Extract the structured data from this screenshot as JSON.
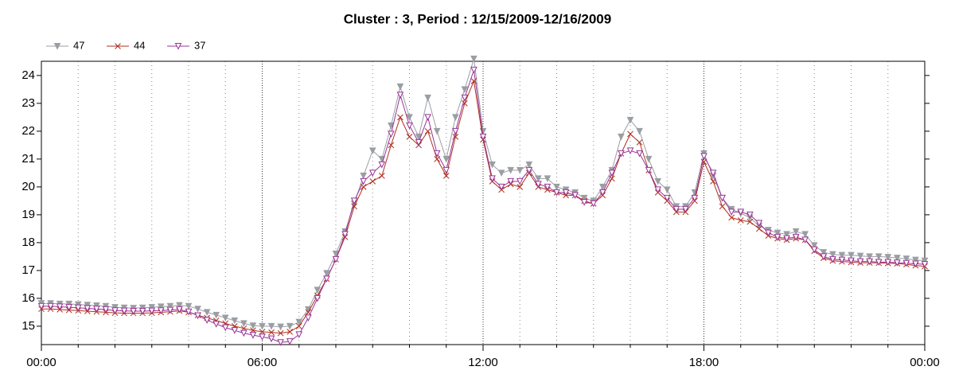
{
  "chart_data": {
    "type": "line",
    "title": "Cluster : 3, Period : 12/15/2009-12/16/2009",
    "x": [
      0,
      0.25,
      0.5,
      0.75,
      1,
      1.25,
      1.5,
      1.75,
      2,
      2.25,
      2.5,
      2.75,
      3,
      3.25,
      3.5,
      3.75,
      4,
      4.25,
      4.5,
      4.75,
      5,
      5.25,
      5.5,
      5.75,
      6,
      6.25,
      6.5,
      6.75,
      7,
      7.25,
      7.5,
      7.75,
      8,
      8.25,
      8.5,
      8.75,
      9,
      9.25,
      9.5,
      9.75,
      10,
      10.25,
      10.5,
      10.75,
      11,
      11.25,
      11.5,
      11.75,
      12,
      12.25,
      12.5,
      12.75,
      13,
      13.25,
      13.5,
      13.75,
      14,
      14.25,
      14.5,
      14.75,
      15,
      15.25,
      15.5,
      15.75,
      16,
      16.25,
      16.5,
      16.75,
      17,
      17.25,
      17.5,
      17.75,
      18,
      18.25,
      18.5,
      18.75,
      19,
      19.25,
      19.5,
      19.75,
      20,
      20.25,
      20.5,
      20.75,
      21,
      21.25,
      21.5,
      21.75,
      22,
      22.25,
      22.5,
      22.75,
      23,
      23.25,
      23.5,
      23.75,
      24
    ],
    "series": [
      {
        "name": "47",
        "color": "#9a9ea2",
        "marker": "triangle-filled",
        "values": [
          15.82,
          15.82,
          15.8,
          15.8,
          15.78,
          15.76,
          15.74,
          15.72,
          15.68,
          15.66,
          15.65,
          15.66,
          15.68,
          15.7,
          15.72,
          15.75,
          15.72,
          15.62,
          15.5,
          15.4,
          15.3,
          15.2,
          15.1,
          15.02,
          15.0,
          15.0,
          14.98,
          15.0,
          15.15,
          15.6,
          16.3,
          16.9,
          17.6,
          18.4,
          19.4,
          20.4,
          21.3,
          21.0,
          22.2,
          23.6,
          22.5,
          21.8,
          23.2,
          22.0,
          21.0,
          22.5,
          23.5,
          24.6,
          22.0,
          20.8,
          20.5,
          20.6,
          20.6,
          20.8,
          20.3,
          20.3,
          20.0,
          19.9,
          19.8,
          19.6,
          19.5,
          20.0,
          20.6,
          21.8,
          22.4,
          22.0,
          21.0,
          20.2,
          19.9,
          19.3,
          19.3,
          19.8,
          21.2,
          20.4,
          19.6,
          19.2,
          19.05,
          18.9,
          18.6,
          18.45,
          18.35,
          18.3,
          18.4,
          18.3,
          17.9,
          17.65,
          17.58,
          17.55,
          17.55,
          17.52,
          17.5,
          17.5,
          17.48,
          17.45,
          17.42,
          17.38,
          17.35
        ]
      },
      {
        "name": "44",
        "color": "#b03020",
        "marker": "cross",
        "values": [
          15.62,
          15.62,
          15.6,
          15.58,
          15.56,
          15.54,
          15.52,
          15.5,
          15.48,
          15.47,
          15.47,
          15.47,
          15.48,
          15.5,
          15.52,
          15.55,
          15.5,
          15.4,
          15.3,
          15.2,
          15.1,
          15.0,
          14.92,
          14.85,
          14.8,
          14.78,
          14.75,
          14.8,
          15.0,
          15.5,
          16.1,
          16.7,
          17.4,
          18.2,
          19.3,
          20.0,
          20.2,
          20.4,
          21.5,
          22.5,
          21.8,
          21.5,
          22.0,
          21.0,
          20.4,
          21.8,
          23.0,
          23.8,
          21.7,
          20.2,
          19.9,
          20.1,
          20.0,
          20.5,
          20.0,
          19.9,
          19.8,
          19.7,
          19.7,
          19.5,
          19.4,
          19.7,
          20.3,
          21.2,
          21.9,
          21.6,
          20.6,
          19.8,
          19.5,
          19.1,
          19.1,
          19.5,
          20.9,
          20.2,
          19.3,
          18.9,
          18.8,
          18.75,
          18.5,
          18.25,
          18.15,
          18.1,
          18.15,
          18.1,
          17.7,
          17.45,
          17.35,
          17.32,
          17.3,
          17.28,
          17.28,
          17.27,
          17.26,
          17.25,
          17.22,
          17.18,
          17.15
        ]
      },
      {
        "name": "37",
        "color": "#993399",
        "marker": "triangle-open",
        "values": [
          15.72,
          15.72,
          15.7,
          15.68,
          15.66,
          15.64,
          15.62,
          15.6,
          15.56,
          15.55,
          15.54,
          15.54,
          15.55,
          15.56,
          15.58,
          15.6,
          15.52,
          15.38,
          15.22,
          15.08,
          14.95,
          14.85,
          14.75,
          14.68,
          14.62,
          14.55,
          14.42,
          14.45,
          14.7,
          15.3,
          16.0,
          16.7,
          17.4,
          18.3,
          19.5,
          20.2,
          20.5,
          20.8,
          21.9,
          23.3,
          22.2,
          21.6,
          22.5,
          21.2,
          20.6,
          22.0,
          23.2,
          24.2,
          21.8,
          20.3,
          20.0,
          20.2,
          20.2,
          20.6,
          20.1,
          20.0,
          19.8,
          19.8,
          19.7,
          19.45,
          19.4,
          19.8,
          20.5,
          21.2,
          21.3,
          21.2,
          20.6,
          19.9,
          19.6,
          19.2,
          19.2,
          19.6,
          21.1,
          20.5,
          19.6,
          19.1,
          19.1,
          19.0,
          18.7,
          18.35,
          18.2,
          18.15,
          18.2,
          18.1,
          17.75,
          17.5,
          17.4,
          17.38,
          17.35,
          17.32,
          17.32,
          17.3,
          17.3,
          17.28,
          17.26,
          17.24,
          17.22
        ]
      }
    ],
    "xlim": [
      0,
      24
    ],
    "xticks": [
      {
        "value": 0,
        "label": "00:00"
      },
      {
        "value": 6,
        "label": "06:00"
      },
      {
        "value": 12,
        "label": "12:00"
      },
      {
        "value": 18,
        "label": "18:00"
      },
      {
        "value": 24,
        "label": "00:00"
      }
    ],
    "xminorticks": [
      1,
      2,
      3,
      4,
      5,
      7,
      8,
      9,
      10,
      11,
      13,
      14,
      15,
      16,
      17,
      19,
      20,
      21,
      22,
      23
    ],
    "ylim": [
      14.34,
      24.51
    ],
    "yticks": [
      15,
      16,
      17,
      18,
      19,
      20,
      21,
      22,
      23,
      24
    ],
    "grid": true,
    "legend": "top-left"
  }
}
